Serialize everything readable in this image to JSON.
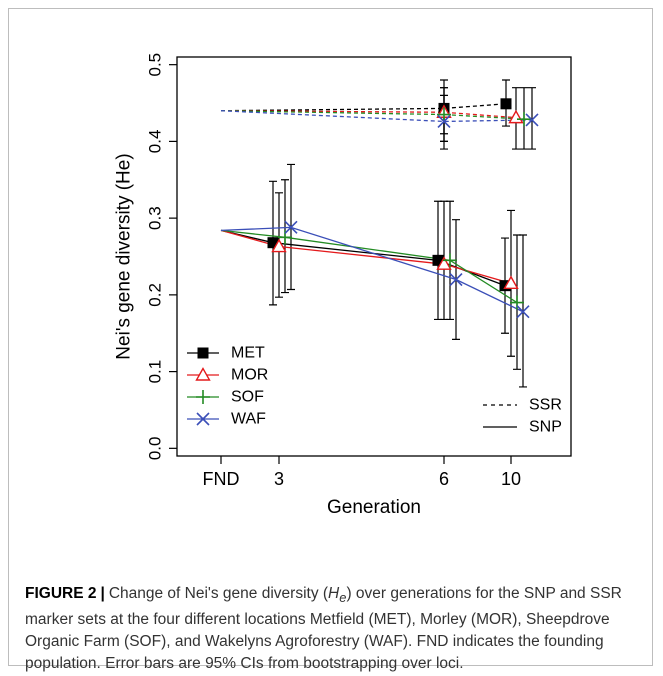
{
  "caption": {
    "label": "FIGURE 2",
    "separator": "|",
    "text_1": "Change of Nei's gene diversity (",
    "symbol": "H",
    "symbol_sub": "e",
    "text_2": ") over generations for the SNP and SSR marker sets at the four different locations Metfield (MET), Morley (MOR), Sheepdrove Organic Farm (SOF), and Wakelyns Agroforestry (WAF). FND indicates the founding population. Error bars are 95% CIs from bootstrapping over loci."
  },
  "chart_data": {
    "type": "line",
    "xlabel": "Generation",
    "ylabel": "Nei's gene diversity (He)",
    "x_categories": [
      "FND",
      "3",
      "6",
      "10"
    ],
    "ylim": [
      -0.01,
      0.51
    ],
    "yticks": [
      "0.0",
      "0.1",
      "0.2",
      "0.3",
      "0.4",
      "0.5"
    ],
    "grid": false,
    "legend_series": {
      "placement": "bottom-left",
      "entries": [
        {
          "name": "MET",
          "color": "#000000",
          "marker": "square"
        },
        {
          "name": "MOR",
          "color": "#e41a1c",
          "marker": "triangle"
        },
        {
          "name": "SOF",
          "color": "#238b23",
          "marker": "plus"
        },
        {
          "name": "WAF",
          "color": "#3b4fb8",
          "marker": "x"
        }
      ]
    },
    "legend_markers": {
      "placement": "bottom-right",
      "entries": [
        {
          "name": "SSR",
          "line": "dashed"
        },
        {
          "name": "SNP",
          "line": "solid"
        }
      ]
    },
    "series": [
      {
        "name": "MET",
        "marker_set": "SSR",
        "points": [
          {
            "x": "FND",
            "y": 0.44
          },
          {
            "x": "6",
            "y": 0.443,
            "lo": 0.41,
            "hi": 0.48
          },
          {
            "x": "10",
            "y": 0.449,
            "lo": 0.42,
            "hi": 0.48
          }
        ]
      },
      {
        "name": "MOR",
        "marker_set": "SSR",
        "points": [
          {
            "x": "FND",
            "y": 0.44
          },
          {
            "x": "6",
            "y": 0.438,
            "lo": 0.4,
            "hi": 0.47
          },
          {
            "x": "10",
            "y": 0.431,
            "lo": 0.39,
            "hi": 0.47
          }
        ]
      },
      {
        "name": "SOF",
        "marker_set": "SSR",
        "points": [
          {
            "x": "FND",
            "y": 0.44
          },
          {
            "x": "6",
            "y": 0.435,
            "lo": 0.4,
            "hi": 0.47
          },
          {
            "x": "10",
            "y": 0.429,
            "lo": 0.39,
            "hi": 0.47
          }
        ]
      },
      {
        "name": "WAF",
        "marker_set": "SSR",
        "points": [
          {
            "x": "FND",
            "y": 0.44
          },
          {
            "x": "6",
            "y": 0.426,
            "lo": 0.39,
            "hi": 0.46
          },
          {
            "x": "10",
            "y": 0.428,
            "lo": 0.39,
            "hi": 0.47
          }
        ]
      },
      {
        "name": "MET",
        "marker_set": "SNP",
        "points": [
          {
            "x": "FND",
            "y": 0.284
          },
          {
            "x": "3",
            "y": 0.268,
            "lo": 0.187,
            "hi": 0.348
          },
          {
            "x": "6",
            "y": 0.245,
            "lo": 0.168,
            "hi": 0.322
          },
          {
            "x": "10",
            "y": 0.212,
            "lo": 0.15,
            "hi": 0.274
          }
        ]
      },
      {
        "name": "MOR",
        "marker_set": "SNP",
        "points": [
          {
            "x": "FND",
            "y": 0.284
          },
          {
            "x": "3",
            "y": 0.263,
            "lo": 0.197,
            "hi": 0.333
          },
          {
            "x": "6",
            "y": 0.24,
            "lo": 0.168,
            "hi": 0.322
          },
          {
            "x": "10",
            "y": 0.215,
            "lo": 0.12,
            "hi": 0.31
          }
        ]
      },
      {
        "name": "SOF",
        "marker_set": "SNP",
        "points": [
          {
            "x": "FND",
            "y": 0.284
          },
          {
            "x": "3",
            "y": 0.275,
            "lo": 0.203,
            "hi": 0.35
          },
          {
            "x": "6",
            "y": 0.245,
            "lo": 0.168,
            "hi": 0.322
          },
          {
            "x": "10",
            "y": 0.19,
            "lo": 0.103,
            "hi": 0.278
          }
        ]
      },
      {
        "name": "WAF",
        "marker_set": "SNP",
        "points": [
          {
            "x": "FND",
            "y": 0.284
          },
          {
            "x": "3",
            "y": 0.288,
            "lo": 0.207,
            "hi": 0.37
          },
          {
            "x": "6",
            "y": 0.22,
            "lo": 0.142,
            "hi": 0.298
          },
          {
            "x": "10",
            "y": 0.178,
            "lo": 0.08,
            "hi": 0.278
          }
        ]
      }
    ]
  }
}
